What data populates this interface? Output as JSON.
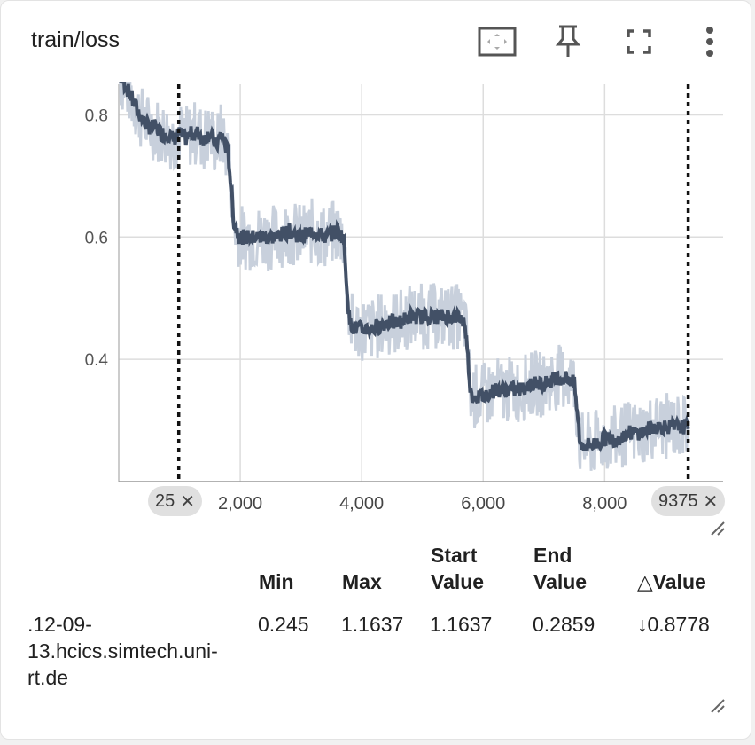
{
  "card": {
    "title": "train/loss",
    "toolbar": {
      "fit_icon": "fit-to-domain-icon",
      "pin_icon": "pin-icon",
      "fullscreen_icon": "fullscreen-icon",
      "more_icon": "more-vert-icon"
    },
    "range_start_label": "25",
    "range_end_label": "9375",
    "close_glyph": "✕"
  },
  "chart_data": {
    "type": "line",
    "title": "",
    "xlabel": "",
    "ylabel": "",
    "x_ticks": [
      2000,
      4000,
      6000,
      8000
    ],
    "x_tick_labels": [
      "2,000",
      "4,000",
      "6,000",
      "8,000"
    ],
    "y_ticks": [
      0.4,
      0.6,
      0.8
    ],
    "y_tick_labels": [
      "0.4",
      "0.6",
      "0.8"
    ],
    "xlim": [
      0,
      9950
    ],
    "ylim": [
      0.2,
      0.85
    ],
    "grid": true,
    "range_markers": [
      25,
      9375
    ],
    "colors": {
      "smoothed": "#425066",
      "raw": "#c8d0dc",
      "grid": "#dddddd"
    },
    "series": [
      {
        "x": [
          25,
          100,
          200,
          300,
          400,
          500,
          600,
          700,
          800,
          900,
          1000,
          1100,
          1200,
          1300,
          1400,
          1500,
          1600,
          1700,
          1750,
          1800,
          1900,
          2000,
          2200,
          2400,
          2600,
          2800,
          3000,
          3200,
          3400,
          3600,
          3700,
          3800,
          3900,
          4000,
          4200,
          4400,
          4600,
          4800,
          5000,
          5200,
          5400,
          5600,
          5700,
          5800,
          6000,
          6200,
          6400,
          6600,
          6800,
          7000,
          7200,
          7400,
          7500,
          7600,
          7800,
          8000,
          8200,
          8400,
          8600,
          8800,
          9000,
          9200,
          9375
        ],
        "values": [
          0.86,
          0.85,
          0.83,
          0.81,
          0.79,
          0.78,
          0.78,
          0.77,
          0.77,
          0.76,
          0.77,
          0.76,
          0.77,
          0.77,
          0.76,
          0.77,
          0.75,
          0.77,
          0.75,
          0.74,
          0.62,
          0.6,
          0.6,
          0.6,
          0.6,
          0.61,
          0.6,
          0.61,
          0.6,
          0.61,
          0.6,
          0.46,
          0.45,
          0.45,
          0.45,
          0.46,
          0.46,
          0.47,
          0.47,
          0.47,
          0.47,
          0.47,
          0.46,
          0.34,
          0.34,
          0.35,
          0.35,
          0.35,
          0.36,
          0.36,
          0.37,
          0.37,
          0.36,
          0.26,
          0.26,
          0.27,
          0.27,
          0.28,
          0.28,
          0.29,
          0.29,
          0.29,
          0.29
        ]
      }
    ]
  },
  "table": {
    "headers": [
      {
        "lines": [
          "Min"
        ]
      },
      {
        "lines": [
          "Max"
        ]
      },
      {
        "lines": [
          "Start",
          "Value"
        ]
      },
      {
        "lines": [
          "End",
          "Value"
        ]
      },
      {
        "lines": [
          "△Value"
        ]
      }
    ],
    "row": {
      "run_lines": [
        ".12-09-",
        "13.hcics.simtech.uni-",
        "rt.de"
      ],
      "min": "0.245",
      "max": "1.1637",
      "start_value": "1.1637",
      "end_value": "0.2859",
      "delta_value": "↓0.8778"
    }
  }
}
